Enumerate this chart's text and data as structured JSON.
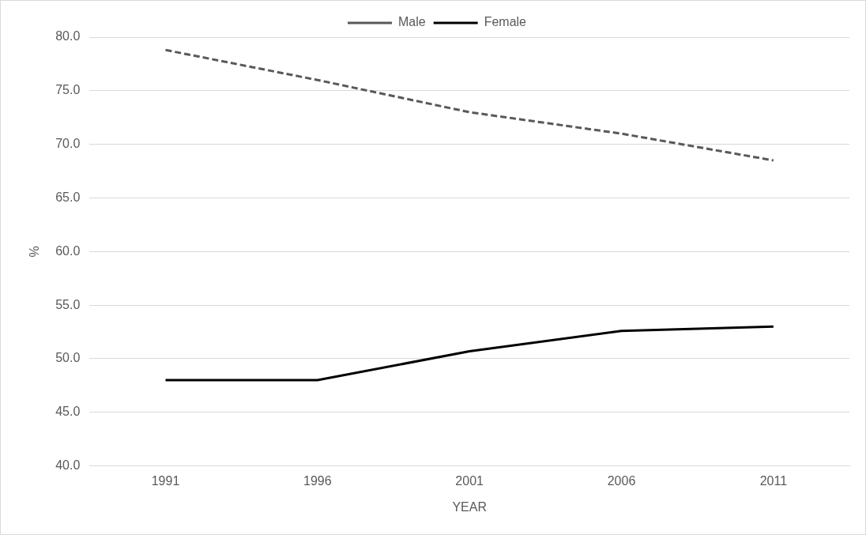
{
  "chart_data": {
    "type": "line",
    "categories": [
      "1991",
      "1996",
      "2001",
      "2006",
      "2011"
    ],
    "series": [
      {
        "name": "Male",
        "color": "#595959",
        "line_style": "dashed",
        "values": [
          78.8,
          76.0,
          73.0,
          71.0,
          68.5
        ]
      },
      {
        "name": "Female",
        "color": "#000000",
        "line_style": "solid",
        "values": [
          48.0,
          48.0,
          50.7,
          52.6,
          53.0
        ]
      }
    ],
    "xlabel": "YEAR",
    "ylabel": "%",
    "ylim": [
      40,
      80
    ],
    "yticks": [
      {
        "value": 40,
        "label": "40.0"
      },
      {
        "value": 45,
        "label": "45.0"
      },
      {
        "value": 50,
        "label": "50.0"
      },
      {
        "value": 55,
        "label": "55.0"
      },
      {
        "value": 60,
        "label": "60.0"
      },
      {
        "value": 65,
        "label": "65.0"
      },
      {
        "value": 70,
        "label": "70.0"
      },
      {
        "value": 75,
        "label": "75.0"
      },
      {
        "value": 80,
        "label": "80.0"
      }
    ],
    "grid": "y",
    "legend": "top",
    "marker": "none"
  }
}
